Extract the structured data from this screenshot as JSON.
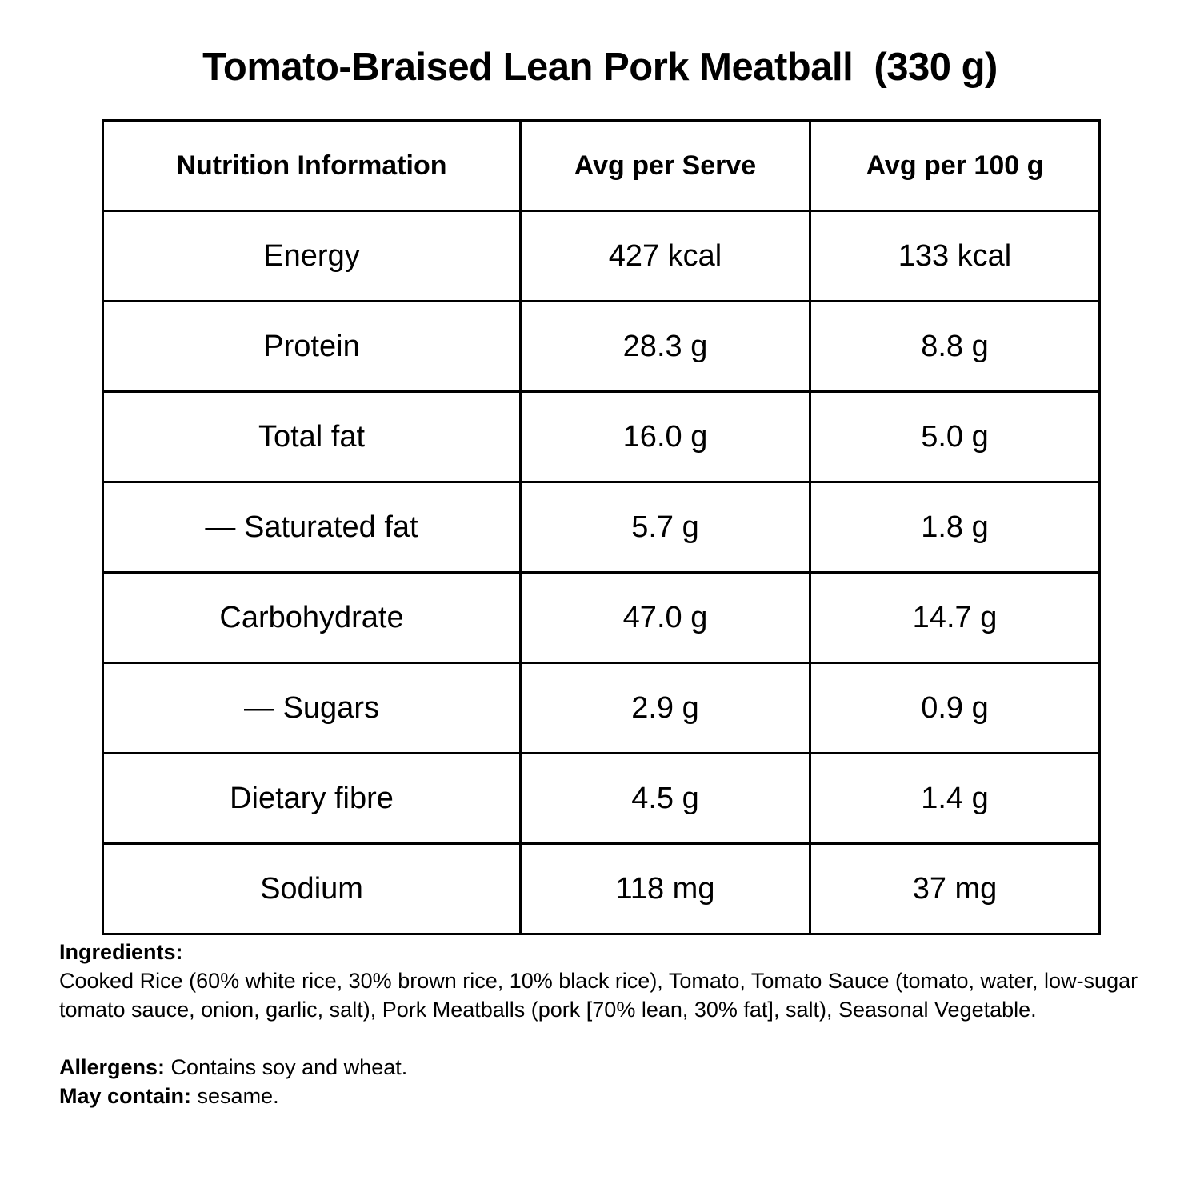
{
  "title": "Tomato-Braised Lean Pork Meatball  (330 g)",
  "table": {
    "headers": [
      "Nutrition Information",
      "Avg per Serve",
      "Avg per 100 g"
    ],
    "rows": [
      [
        "Energy",
        "427 kcal",
        "133 kcal"
      ],
      [
        "Protein",
        "28.3 g",
        "8.8 g"
      ],
      [
        "Total fat",
        "16.0 g",
        "5.0 g"
      ],
      [
        "— Saturated fat",
        "5.7 g",
        "1.8 g"
      ],
      [
        "Carbohydrate",
        "47.0 g",
        "14.7 g"
      ],
      [
        "— Sugars",
        "2.9 g",
        "0.9 g"
      ],
      [
        "Dietary fibre",
        "4.5 g",
        "1.4 g"
      ],
      [
        "Sodium",
        "118 mg",
        "37 mg"
      ]
    ]
  },
  "ingredients": {
    "label": "Ingredients:",
    "text": " Cooked Rice (60% white rice, 30% brown rice, 10% black rice), Tomato, Tomato Sauce (tomato, water, low-sugar tomato sauce, onion, garlic, salt), Pork Meatballs (pork [70% lean, 30% fat], salt), Seasonal Vegetable."
  },
  "allergens": {
    "label": "Allergens:",
    "text": " Contains soy and wheat."
  },
  "may_contain": {
    "label": "May contain:",
    "text": " sesame."
  }
}
